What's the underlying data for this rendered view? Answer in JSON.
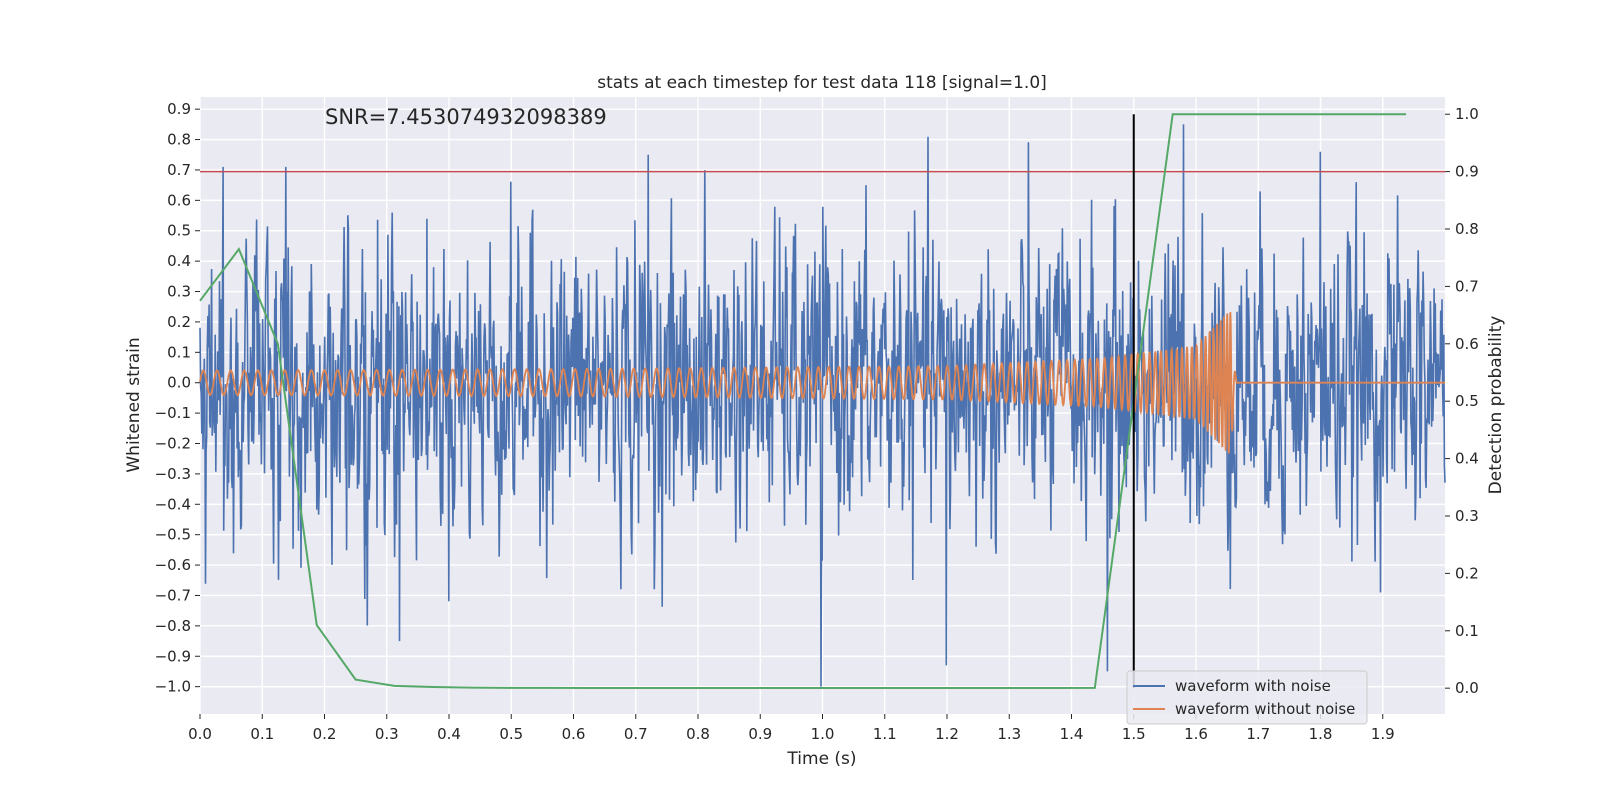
{
  "chart_data": {
    "type": "line",
    "title": "stats at each timestep for test data 118 [signal=1.0]",
    "annotation": "SNR=7.453074932098389",
    "xlabel": "Time (s)",
    "ylabel_left": "Whitened strain",
    "ylabel_right": "Detection probability",
    "xlim": [
      0.0,
      2.0
    ],
    "ylim_left": [
      -1.09,
      0.94
    ],
    "ylim_right": [
      -0.045,
      1.03
    ],
    "xticks": [
      0.0,
      0.1,
      0.2,
      0.3,
      0.4,
      0.5,
      0.6,
      0.7,
      0.8,
      0.9,
      1.0,
      1.1,
      1.2,
      1.3,
      1.4,
      1.5,
      1.6,
      1.7,
      1.8,
      1.9
    ],
    "yticks_left": [
      -1.0,
      -0.9,
      -0.8,
      -0.7,
      -0.6,
      -0.5,
      -0.4,
      -0.3,
      -0.2,
      -0.1,
      0.0,
      0.1,
      0.2,
      0.3,
      0.4,
      0.5,
      0.6,
      0.7,
      0.8,
      0.9
    ],
    "yticks_right": [
      0.0,
      0.1,
      0.2,
      0.3,
      0.4,
      0.5,
      0.6,
      0.7,
      0.8,
      0.9,
      1.0
    ],
    "grid": true,
    "legend_position": "lower-right",
    "background_color": "#eaeaf2",
    "series": [
      {
        "name": "waveform with noise",
        "axis": "left",
        "color": "#4c72b0",
        "sample_count": 2048,
        "approx_range": [
          -1.0,
          0.86
        ],
        "approx_std": 0.22,
        "peaks": [
          {
            "x": 0.037,
            "y": 0.71
          },
          {
            "x": 0.138,
            "y": 0.71
          },
          {
            "x": 0.32,
            "y": -0.85
          },
          {
            "x": 0.72,
            "y": 0.75
          },
          {
            "x": 0.998,
            "y": -1.0
          },
          {
            "x": 1.199,
            "y": -0.93
          },
          {
            "x": 1.458,
            "y": -0.95
          },
          {
            "x": 1.58,
            "y": 0.85
          },
          {
            "x": 1.8,
            "y": 0.76
          }
        ]
      },
      {
        "name": "waveform without noise",
        "axis": "left",
        "color": "#dd8452",
        "description_points": [
          {
            "x": 0.0,
            "amplitude": 0.04,
            "freq_hz": 45
          },
          {
            "x": 0.6,
            "amplitude": 0.045,
            "freq_hz": 52
          },
          {
            "x": 1.2,
            "amplitude": 0.055,
            "freq_hz": 65
          },
          {
            "x": 1.45,
            "amplitude": 0.08,
            "freq_hz": 85
          },
          {
            "x": 1.6,
            "amplitude": 0.12,
            "freq_hz": 130
          },
          {
            "x": 1.655,
            "amplitude": 0.24,
            "freq_hz": 200
          },
          {
            "x": 1.665,
            "amplitude": 0.0,
            "freq_hz": 0
          }
        ],
        "after_merger_value": 0.0
      },
      {
        "name": "detection probability",
        "axis": "right",
        "color": "#55a868",
        "x": [
          0.0,
          0.0625,
          0.125,
          0.1875,
          0.25,
          0.3125,
          0.375,
          0.4375,
          0.5,
          0.5625,
          0.625,
          0.6875,
          0.75,
          0.8125,
          0.875,
          0.9375,
          1.0,
          1.0625,
          1.125,
          1.1875,
          1.25,
          1.3125,
          1.375,
          1.4375,
          1.5,
          1.5625,
          1.625,
          1.6875,
          1.75,
          1.8125,
          1.875,
          1.9375
        ],
        "values": [
          0.675,
          0.765,
          0.6,
          0.11,
          0.015,
          0.004,
          0.002,
          0.001,
          0.0005,
          0.0004,
          0.0003,
          0.0003,
          0.0003,
          0.0003,
          0.0003,
          0.0003,
          0.0003,
          0.0003,
          0.0003,
          0.0003,
          0.0003,
          0.0003,
          0.0003,
          0.0005,
          0.5,
          1.0,
          1.0,
          1.0,
          1.0,
          1.0,
          1.0,
          1.0
        ]
      }
    ],
    "threshold_line": {
      "axis": "right",
      "value": 0.9,
      "color": "#c44e52"
    },
    "vertical_marker": {
      "x": 1.5,
      "y_range_right": [
        0.0,
        1.0
      ],
      "color": "#000000"
    }
  }
}
